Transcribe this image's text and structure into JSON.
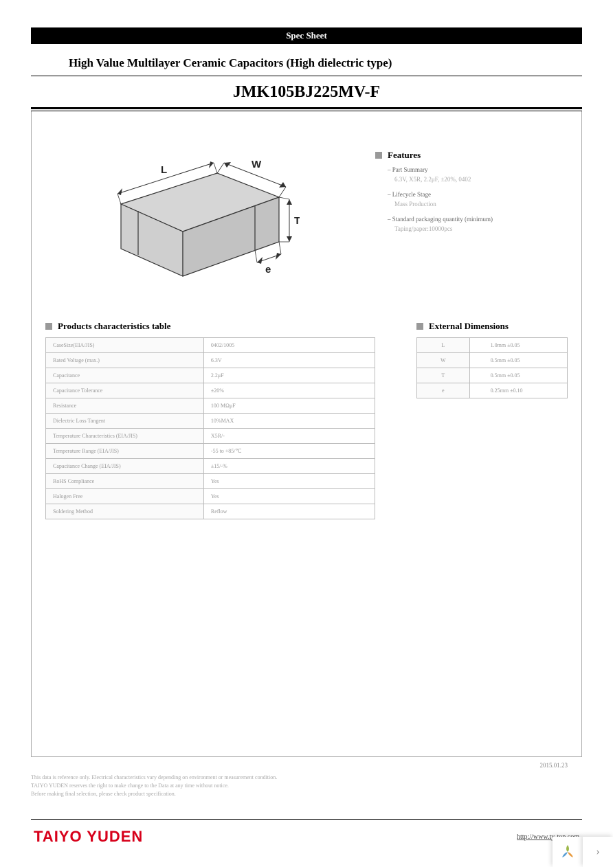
{
  "header": {
    "bar_text": "Spec Sheet",
    "subtitle": "High Value Multilayer Ceramic Capacitors (High dielectric type)",
    "part_number": "JMK105BJ225MV-F"
  },
  "diagram": {
    "labels": {
      "L": "L",
      "W": "W",
      "T": "T",
      "e": "e"
    },
    "fill": "#d6d6d6",
    "stroke": "#333"
  },
  "features": {
    "title": "Features",
    "items": [
      {
        "label": "Part Summary",
        "value": "6.3V, X5R, 2.2μF, ±20%, 0402"
      },
      {
        "label": "Lifecycle Stage",
        "value": "Mass Production"
      },
      {
        "label": "Standard packaging quantity (minimum)",
        "value": "Taping/paper:10000pcs"
      }
    ]
  },
  "characteristics": {
    "title": "Products characteristics table",
    "rows": [
      [
        "CaseSize(EIA/JIS)",
        "0402/1005"
      ],
      [
        "Rated Voltage (max.)",
        "6.3V"
      ],
      [
        "Capacitance",
        "2.2μF"
      ],
      [
        "Capacitance Tolerance",
        "±20%"
      ],
      [
        "Resistance",
        "100 MΩμF"
      ],
      [
        "Dielectric Loss Tangent",
        "10%MAX"
      ],
      [
        "Temperature Characteristics (EIA/JIS)",
        "X5R/-"
      ],
      [
        "Temperature Range (EIA/JIS)",
        "-55 to +85/℃"
      ],
      [
        "Capacitance Change (EIA/JIS)",
        "±15/-%"
      ],
      [
        "RoHS Compliance",
        "Yes"
      ],
      [
        "Halogen Free",
        "Yes"
      ],
      [
        "Soldering Method",
        "Reflow"
      ]
    ]
  },
  "dimensions": {
    "title": "External Dimensions",
    "rows": [
      [
        "L",
        "1.0mm ±0.05"
      ],
      [
        "W",
        "0.5mm ±0.05"
      ],
      [
        "T",
        "0.5mm ±0.05"
      ],
      [
        "e",
        "0.25mm ±0.10"
      ]
    ]
  },
  "date": "2015.01.23",
  "disclaimer": [
    "This data is reference only. Electrical characteristics vary depending on environment or measurement condition.",
    "TAIYO YUDEN reserves the right to make change to the Data at any time without notice.",
    "Before making final selection, please check product specification."
  ],
  "footer": {
    "brand": "TAIYO YUDEN",
    "url": "http://www.ty-top.com"
  }
}
